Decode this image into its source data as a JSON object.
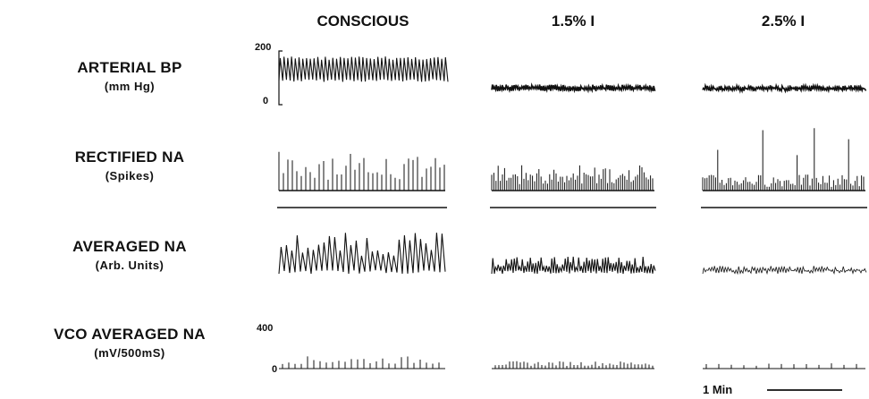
{
  "columns": [
    {
      "label": "CONSCIOUS"
    },
    {
      "label": "1.5% I"
    },
    {
      "label": "2.5% I"
    }
  ],
  "rows": [
    {
      "label": "ARTERIAL BP",
      "sublabel": "(mm Hg)"
    },
    {
      "label": "RECTIFIED NA",
      "sublabel": "(Spikes)"
    },
    {
      "label": "AVERAGED NA",
      "sublabel": "(Arb. Units)"
    },
    {
      "label": "VCO AVERAGED NA",
      "sublabel": "(mV/500mS)"
    }
  ],
  "axis": {
    "bp_max": "200",
    "bp_min": "0",
    "vco_max": "400",
    "vco_min": "0"
  },
  "scale_bar": {
    "label": "1 Min"
  },
  "chart_data": {
    "type": "line",
    "grid": false,
    "panels": [
      {
        "row": "ARTERIAL BP",
        "units": "mm Hg",
        "ylim": [
          0,
          200
        ],
        "conditions": {
          "CONSCIOUS": {
            "systolic": 180,
            "diastolic": 90
          },
          "1.5% I": {
            "systolic": 75,
            "diastolic": 55
          },
          "2.5% I": {
            "systolic": 72,
            "diastolic": 55
          }
        }
      },
      {
        "row": "RECTIFIED NA",
        "units": "Spikes",
        "conditions": {
          "CONSCIOUS": {
            "activity": "high"
          },
          "1.5% I": {
            "activity": "moderate"
          },
          "2.5% I": {
            "activity": "low"
          }
        }
      },
      {
        "row": "AVERAGED NA",
        "units": "Arb. Units",
        "conditions": {
          "CONSCIOUS": {
            "activity": "high"
          },
          "1.5% I": {
            "activity": "moderate"
          },
          "2.5% I": {
            "activity": "low"
          }
        }
      },
      {
        "row": "VCO AVERAGED NA",
        "units": "mV/500mS",
        "ylim": [
          0,
          400
        ],
        "conditions": {
          "CONSCIOUS": {
            "peak": 100
          },
          "1.5% I": {
            "peak": 60
          },
          "2.5% I": {
            "peak": 40
          }
        }
      }
    ]
  }
}
